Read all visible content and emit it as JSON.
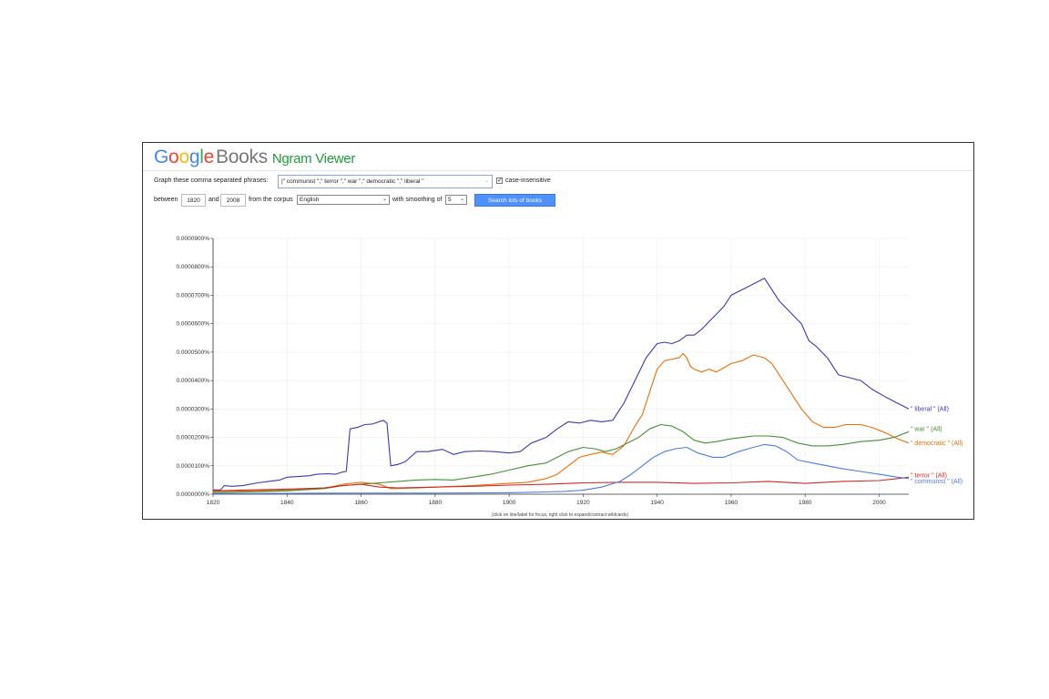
{
  "header": {
    "logo_google": [
      "G",
      "o",
      "o",
      "g",
      "l",
      "e"
    ],
    "logo_google_colors": [
      "#4285F4",
      "#EA4335",
      "#FBBC05",
      "#4285F4",
      "#34A853",
      "#EA4335"
    ],
    "logo_books": "Books",
    "title": "Ngram Viewer"
  },
  "form": {
    "phrases_label": "Graph these comma separated phrases:",
    "phrases_value": "|\" communist \",\" terror \",\" war \",\" democratic \",\" liberal \"",
    "case_insensitive_label": "case-insensitive",
    "between_label": "between",
    "start_year": "1820",
    "and_label": "and",
    "end_year": "2008",
    "corpus_label": "from the corpus",
    "corpus_value": "English",
    "smoothing_label": "with smoothing of",
    "smoothing_value": "5",
    "search_button": "Search lots of books"
  },
  "footer_note": "(click on line/label for focus, right click to expand/contract wildcards)",
  "chart_data": {
    "type": "line",
    "xlim": [
      1820,
      2008
    ],
    "ylim": [
      0,
      9e-07
    ],
    "xticks": [
      "1820",
      "1840",
      "1860",
      "1880",
      "1900",
      "1920",
      "1940",
      "1960",
      "1980",
      "2000"
    ],
    "yticks": [
      "0.0000000%",
      "0.0000100%",
      "0.0000200%",
      "0.0000300%",
      "0.0000400%",
      "0.0000500%",
      "0.0000600%",
      "0.0000700%",
      "0.0000800%",
      "0.0000900%"
    ],
    "grid": true,
    "series": [
      {
        "name": "\" liberal \" (All)",
        "color": "#3b3bab",
        "points": [
          [
            1820,
            1.5e-08
          ],
          [
            1822,
            1.5e-08
          ],
          [
            1823,
            3e-08
          ],
          [
            1825,
            2.8e-08
          ],
          [
            1828,
            3e-08
          ],
          [
            1832,
            4e-08
          ],
          [
            1835,
            4.5e-08
          ],
          [
            1838,
            5e-08
          ],
          [
            1840,
            6e-08
          ],
          [
            1843,
            6.2e-08
          ],
          [
            1846,
            6.5e-08
          ],
          [
            1848,
            7e-08
          ],
          [
            1851,
            7.2e-08
          ],
          [
            1853,
            7e-08
          ],
          [
            1855,
            7.8e-08
          ],
          [
            1856,
            8e-08
          ],
          [
            1857,
            2.3e-07
          ],
          [
            1859,
            2.35e-07
          ],
          [
            1861,
            2.45e-07
          ],
          [
            1863,
            2.47e-07
          ],
          [
            1866,
            2.6e-07
          ],
          [
            1867,
            2.5e-07
          ],
          [
            1868,
            1e-07
          ],
          [
            1870,
            1.05e-07
          ],
          [
            1872,
            1.15e-07
          ],
          [
            1875,
            1.5e-07
          ],
          [
            1878,
            1.5e-07
          ],
          [
            1882,
            1.58e-07
          ],
          [
            1885,
            1.4e-07
          ],
          [
            1888,
            1.5e-07
          ],
          [
            1892,
            1.52e-07
          ],
          [
            1896,
            1.5e-07
          ],
          [
            1900,
            1.45e-07
          ],
          [
            1903,
            1.5e-07
          ],
          [
            1906,
            1.8e-07
          ],
          [
            1910,
            2e-07
          ],
          [
            1913,
            2.3e-07
          ],
          [
            1916,
            2.55e-07
          ],
          [
            1919,
            2.5e-07
          ],
          [
            1922,
            2.6e-07
          ],
          [
            1925,
            2.55e-07
          ],
          [
            1928,
            2.6e-07
          ],
          [
            1931,
            3.2e-07
          ],
          [
            1934,
            4e-07
          ],
          [
            1937,
            4.8e-07
          ],
          [
            1940,
            5.3e-07
          ],
          [
            1942,
            5.35e-07
          ],
          [
            1944,
            5.3e-07
          ],
          [
            1946,
            5.4e-07
          ],
          [
            1948,
            5.6e-07
          ],
          [
            1950,
            5.6e-07
          ],
          [
            1952,
            5.8e-07
          ],
          [
            1955,
            6.2e-07
          ],
          [
            1958,
            6.6e-07
          ],
          [
            1960,
            7e-07
          ],
          [
            1963,
            7.2e-07
          ],
          [
            1966,
            7.4e-07
          ],
          [
            1969,
            7.6e-07
          ],
          [
            1971,
            7.2e-07
          ],
          [
            1973,
            6.8e-07
          ],
          [
            1976,
            6.4e-07
          ],
          [
            1979,
            6e-07
          ],
          [
            1981,
            5.4e-07
          ],
          [
            1983,
            5.2e-07
          ],
          [
            1986,
            4.8e-07
          ],
          [
            1989,
            4.2e-07
          ],
          [
            1992,
            4.1e-07
          ],
          [
            1995,
            4e-07
          ],
          [
            1998,
            3.7e-07
          ],
          [
            2002,
            3.4e-07
          ],
          [
            2005,
            3.2e-07
          ],
          [
            2008,
            3e-07
          ]
        ]
      },
      {
        "name": "\" democratic \" (All)",
        "color": "#e8710a",
        "points": [
          [
            1820,
            1e-08
          ],
          [
            1830,
            1.2e-08
          ],
          [
            1840,
            1.4e-08
          ],
          [
            1850,
            2e-08
          ],
          [
            1855,
            3.5e-08
          ],
          [
            1860,
            4.2e-08
          ],
          [
            1865,
            3.5e-08
          ],
          [
            1868,
            2e-08
          ],
          [
            1875,
            2.2e-08
          ],
          [
            1880,
            2.5e-08
          ],
          [
            1890,
            3e-08
          ],
          [
            1900,
            3.8e-08
          ],
          [
            1905,
            4.2e-08
          ],
          [
            1910,
            5.5e-08
          ],
          [
            1913,
            7e-08
          ],
          [
            1916,
            1e-07
          ],
          [
            1919,
            1.3e-07
          ],
          [
            1922,
            1.4e-07
          ],
          [
            1925,
            1.48e-07
          ],
          [
            1928,
            1.4e-07
          ],
          [
            1931,
            1.7e-07
          ],
          [
            1934,
            2.4e-07
          ],
          [
            1936,
            2.8e-07
          ],
          [
            1938,
            3.6e-07
          ],
          [
            1940,
            4.4e-07
          ],
          [
            1942,
            4.7e-07
          ],
          [
            1944,
            4.75e-07
          ],
          [
            1946,
            4.8e-07
          ],
          [
            1947,
            4.95e-07
          ],
          [
            1948,
            4.8e-07
          ],
          [
            1949,
            4.5e-07
          ],
          [
            1950,
            4.4e-07
          ],
          [
            1952,
            4.3e-07
          ],
          [
            1954,
            4.4e-07
          ],
          [
            1956,
            4.3e-07
          ],
          [
            1958,
            4.45e-07
          ],
          [
            1960,
            4.6e-07
          ],
          [
            1963,
            4.7e-07
          ],
          [
            1966,
            4.9e-07
          ],
          [
            1969,
            4.8e-07
          ],
          [
            1971,
            4.6e-07
          ],
          [
            1973,
            4.2e-07
          ],
          [
            1976,
            3.6e-07
          ],
          [
            1979,
            3e-07
          ],
          [
            1982,
            2.55e-07
          ],
          [
            1985,
            2.35e-07
          ],
          [
            1988,
            2.35e-07
          ],
          [
            1991,
            2.45e-07
          ],
          [
            1995,
            2.45e-07
          ],
          [
            1998,
            2.35e-07
          ],
          [
            2001,
            2.2e-07
          ],
          [
            2005,
            1.95e-07
          ],
          [
            2008,
            1.8e-07
          ]
        ]
      },
      {
        "name": "\" war \" (All)",
        "color": "#468f35",
        "points": [
          [
            1820,
            5e-09
          ],
          [
            1830,
            8e-09
          ],
          [
            1840,
            1.2e-08
          ],
          [
            1850,
            2e-08
          ],
          [
            1855,
            3e-08
          ],
          [
            1860,
            3.5e-08
          ],
          [
            1865,
            4e-08
          ],
          [
            1870,
            4.5e-08
          ],
          [
            1875,
            5e-08
          ],
          [
            1880,
            5.2e-08
          ],
          [
            1885,
            5e-08
          ],
          [
            1890,
            6e-08
          ],
          [
            1895,
            7e-08
          ],
          [
            1900,
            8.5e-08
          ],
          [
            1905,
            1e-07
          ],
          [
            1910,
            1.1e-07
          ],
          [
            1913,
            1.3e-07
          ],
          [
            1916,
            1.5e-07
          ],
          [
            1920,
            1.65e-07
          ],
          [
            1923,
            1.6e-07
          ],
          [
            1926,
            1.5e-07
          ],
          [
            1929,
            1.6e-07
          ],
          [
            1932,
            1.8e-07
          ],
          [
            1935,
            2e-07
          ],
          [
            1938,
            2.3e-07
          ],
          [
            1941,
            2.45e-07
          ],
          [
            1944,
            2.4e-07
          ],
          [
            1947,
            2.2e-07
          ],
          [
            1950,
            1.9e-07
          ],
          [
            1953,
            1.8e-07
          ],
          [
            1956,
            1.85e-07
          ],
          [
            1960,
            1.95e-07
          ],
          [
            1963,
            2e-07
          ],
          [
            1966,
            2.05e-07
          ],
          [
            1970,
            2.05e-07
          ],
          [
            1974,
            2e-07
          ],
          [
            1978,
            1.8e-07
          ],
          [
            1982,
            1.7e-07
          ],
          [
            1986,
            1.7e-07
          ],
          [
            1990,
            1.75e-07
          ],
          [
            1995,
            1.85e-07
          ],
          [
            2000,
            1.9e-07
          ],
          [
            2004,
            2e-07
          ],
          [
            2008,
            2.2e-07
          ]
        ]
      },
      {
        "name": "\" terror \" (All)",
        "color": "#cc2b2b",
        "points": [
          [
            1820,
            1.2e-08
          ],
          [
            1830,
            1.5e-08
          ],
          [
            1840,
            1.8e-08
          ],
          [
            1850,
            2.2e-08
          ],
          [
            1855,
            3e-08
          ],
          [
            1860,
            3.5e-08
          ],
          [
            1865,
            2.5e-08
          ],
          [
            1870,
            2.2e-08
          ],
          [
            1880,
            2.5e-08
          ],
          [
            1890,
            2.8e-08
          ],
          [
            1900,
            3.2e-08
          ],
          [
            1910,
            3.5e-08
          ],
          [
            1920,
            4e-08
          ],
          [
            1930,
            4.2e-08
          ],
          [
            1940,
            4.2e-08
          ],
          [
            1950,
            3.8e-08
          ],
          [
            1960,
            4e-08
          ],
          [
            1970,
            4.5e-08
          ],
          [
            1980,
            3.8e-08
          ],
          [
            1990,
            4.5e-08
          ],
          [
            2000,
            4.8e-08
          ],
          [
            2005,
            5.5e-08
          ],
          [
            2008,
            6e-08
          ]
        ]
      },
      {
        "name": "\" communist \" (All)",
        "color": "#4c7ce0",
        "points": [
          [
            1820,
            2e-09
          ],
          [
            1840,
            3e-09
          ],
          [
            1860,
            4e-09
          ],
          [
            1880,
            4e-09
          ],
          [
            1900,
            5e-09
          ],
          [
            1910,
            8e-09
          ],
          [
            1915,
            1e-08
          ],
          [
            1920,
            1.4e-08
          ],
          [
            1925,
            2.5e-08
          ],
          [
            1930,
            4.5e-08
          ],
          [
            1933,
            7e-08
          ],
          [
            1936,
            1e-07
          ],
          [
            1939,
            1.3e-07
          ],
          [
            1942,
            1.5e-07
          ],
          [
            1945,
            1.6e-07
          ],
          [
            1948,
            1.65e-07
          ],
          [
            1951,
            1.45e-07
          ],
          [
            1955,
            1.3e-07
          ],
          [
            1958,
            1.3e-07
          ],
          [
            1962,
            1.5e-07
          ],
          [
            1966,
            1.65e-07
          ],
          [
            1969,
            1.75e-07
          ],
          [
            1972,
            1.7e-07
          ],
          [
            1975,
            1.5e-07
          ],
          [
            1978,
            1.2e-07
          ],
          [
            1982,
            1.1e-07
          ],
          [
            1986,
            1e-07
          ],
          [
            1990,
            9e-08
          ],
          [
            1995,
            8e-08
          ],
          [
            2000,
            7e-08
          ],
          [
            2005,
            6e-08
          ],
          [
            2008,
            5.5e-08
          ]
        ]
      }
    ]
  }
}
